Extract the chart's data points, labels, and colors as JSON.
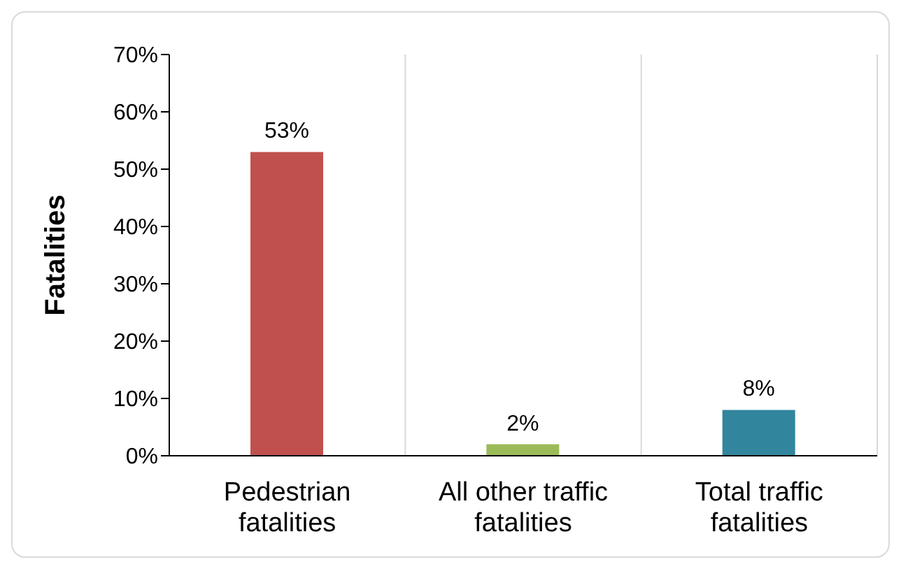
{
  "chart_data": {
    "type": "bar",
    "ylabel": "Fatalities",
    "categories": [
      "Pedestrian fatalities",
      "All other traffic fatalities",
      "Total traffic fatalities"
    ],
    "values": [
      53,
      2,
      8
    ],
    "colors": [
      "#c0504d",
      "#9bbb59",
      "#31859c"
    ],
    "value_labels": [
      "53%",
      "2%",
      "8%"
    ],
    "ylim": [
      0,
      70
    ],
    "yticks": [
      {
        "value": 0,
        "label": "0%"
      },
      {
        "value": 10,
        "label": "10%"
      },
      {
        "value": 20,
        "label": "20%"
      },
      {
        "value": 30,
        "label": "30%"
      },
      {
        "value": 40,
        "label": "40%"
      },
      {
        "value": 50,
        "label": "50%"
      },
      {
        "value": 60,
        "label": "60%"
      },
      {
        "value": 70,
        "label": "70%"
      }
    ],
    "grid": "x"
  }
}
